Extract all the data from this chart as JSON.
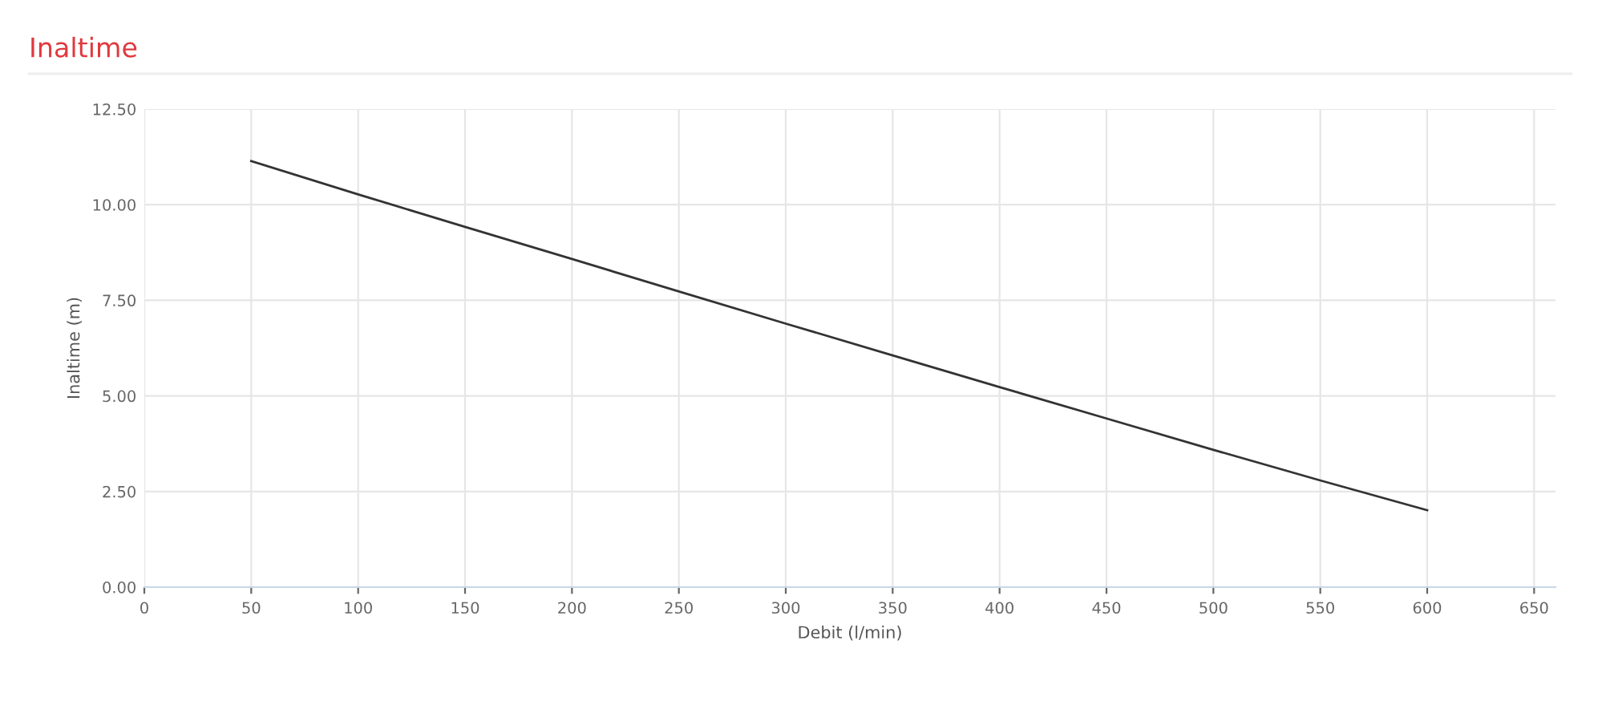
{
  "chart_data": {
    "type": "line",
    "title": "Inaltime",
    "xlabel": "Debit (l/min)",
    "ylabel": "Inaltime (m)",
    "x": [
      50,
      100,
      150,
      200,
      250,
      300,
      350,
      400,
      450,
      500,
      550,
      600
    ],
    "series": [
      {
        "color": "#333333",
        "values": [
          11.14,
          10.27,
          9.42,
          8.58,
          7.73,
          6.89,
          6.06,
          5.23,
          4.41,
          3.59,
          2.79,
          2.01
        ]
      }
    ],
    "xlim": [
      0,
      660
    ],
    "ylim": [
      0,
      12.5
    ],
    "xticks": [
      0,
      50,
      100,
      150,
      200,
      250,
      300,
      350,
      400,
      450,
      500,
      550,
      600,
      650
    ],
    "yticks": [
      {
        "value": 0,
        "label": "0.00"
      },
      {
        "value": 2.5,
        "label": "2.50"
      },
      {
        "value": 5,
        "label": "5.00"
      },
      {
        "value": 7.5,
        "label": "7.50"
      },
      {
        "value": 10,
        "label": "10.00"
      },
      {
        "value": 12.5,
        "label": "12.50"
      }
    ],
    "grid": true,
    "marker": "none",
    "line_style": "solid",
    "legend": false
  }
}
